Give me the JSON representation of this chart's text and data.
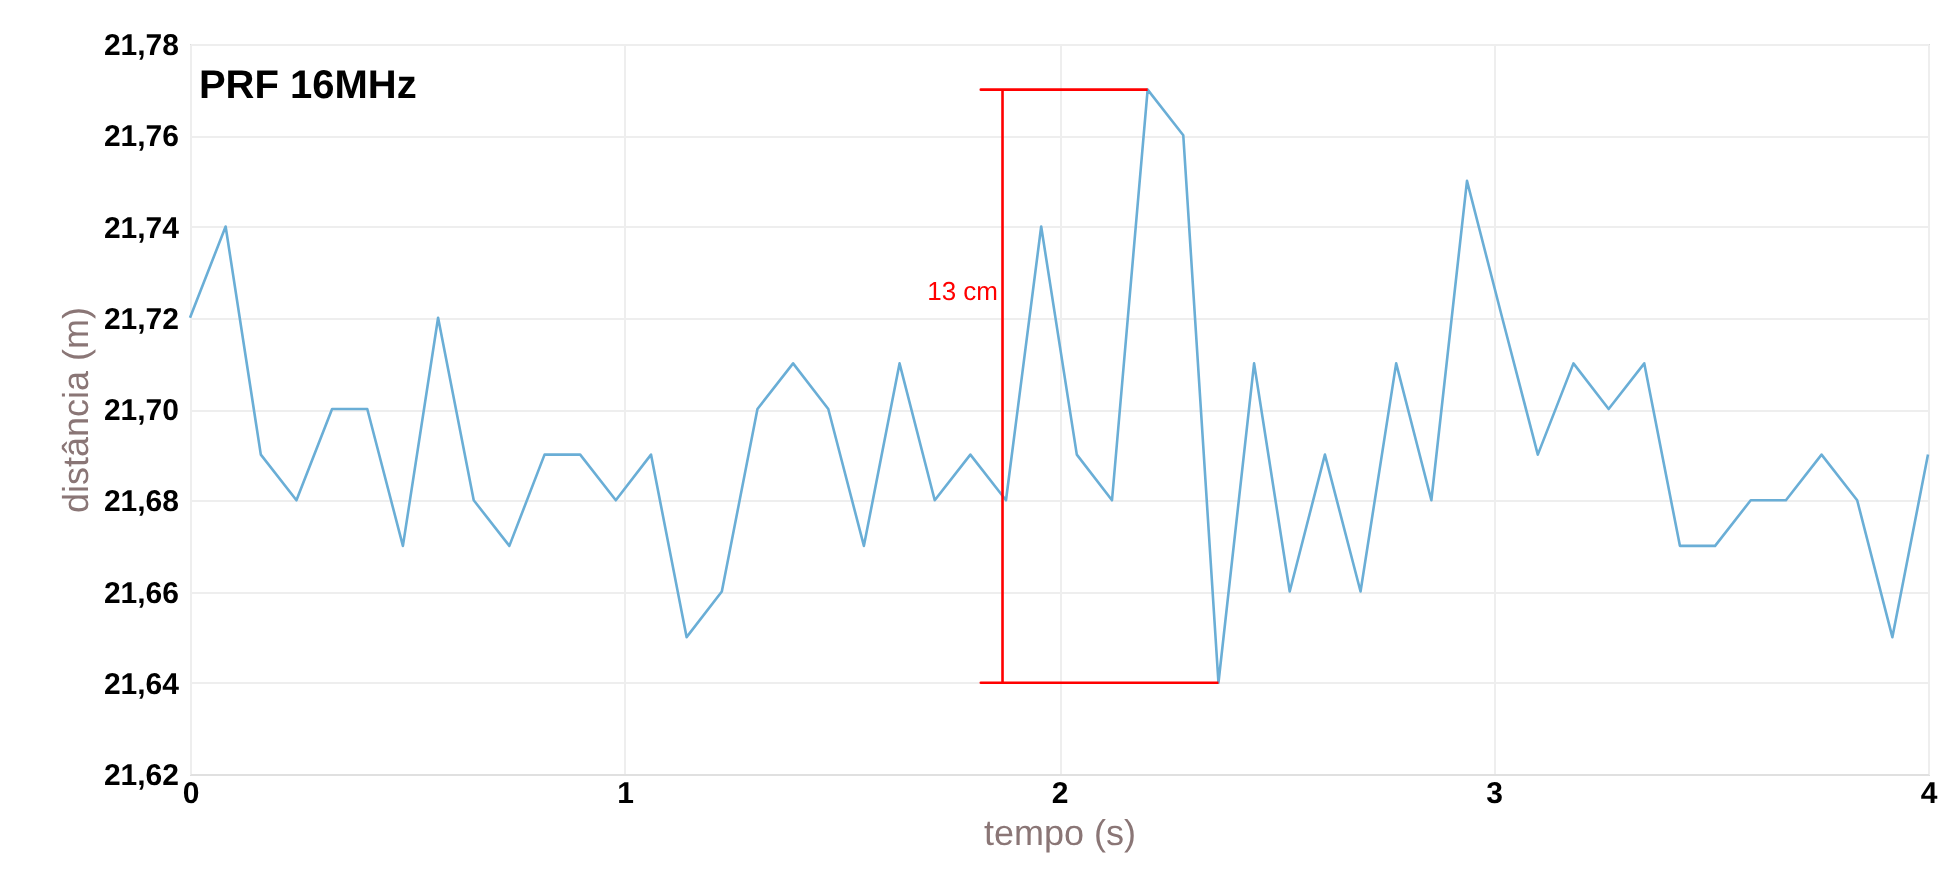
{
  "chart_data": {
    "type": "line",
    "title": "PRF 16MHz",
    "xlabel": "tempo (s)",
    "ylabel": "distância (m)",
    "x": [
      0,
      0.082,
      0.163,
      0.245,
      0.327,
      0.408,
      0.49,
      0.571,
      0.653,
      0.735,
      0.816,
      0.898,
      0.98,
      1.061,
      1.143,
      1.224,
      1.306,
      1.388,
      1.469,
      1.551,
      1.633,
      1.714,
      1.796,
      1.878,
      1.959,
      2.041,
      2.122,
      2.204,
      2.286,
      2.367,
      2.449,
      2.531,
      2.612,
      2.694,
      2.776,
      2.857,
      2.939,
      3.02,
      3.102,
      3.184,
      3.265,
      3.347,
      3.429,
      3.51,
      3.592,
      3.673,
      3.755,
      3.837,
      3.918,
      4.0
    ],
    "series": [
      {
        "color": "#6aaed6",
        "values": [
          21.72,
          21.74,
          21.69,
          21.68,
          21.7,
          21.7,
          21.67,
          21.72,
          21.68,
          21.67,
          21.69,
          21.69,
          21.68,
          21.69,
          21.65,
          21.66,
          21.7,
          21.71,
          21.7,
          21.67,
          21.71,
          21.68,
          21.69,
          21.68,
          21.74,
          21.69,
          21.68,
          21.77,
          21.76,
          21.64,
          21.71,
          21.66,
          21.69,
          21.66,
          21.71,
          21.68,
          21.75,
          21.72,
          21.69,
          21.71,
          21.7,
          21.71,
          21.67,
          21.67,
          21.68,
          21.68,
          21.69,
          21.68,
          21.65,
          21.69
        ]
      },
      {
        "type": "line",
        "color": "#ff0000",
        "x": [
          2.204,
          1.82,
          1.87,
          1.87,
          1.82,
          2.367
        ],
        "values": [
          21.77,
          21.77,
          21.77,
          21.64,
          21.64,
          21.64
        ]
      }
    ],
    "xlim": [
      0,
      4
    ],
    "xticks": [
      {
        "value": 0,
        "label": "0"
      },
      {
        "value": 1,
        "label": "1"
      },
      {
        "value": 2,
        "label": "2"
      },
      {
        "value": 3,
        "label": "3"
      },
      {
        "value": 4,
        "label": "4"
      }
    ],
    "ylim": [
      21.62,
      21.78
    ],
    "yticks": [
      {
        "value": 21.62,
        "label": "21,62"
      },
      {
        "value": 21.64,
        "label": "21,64"
      },
      {
        "value": 21.66,
        "label": "21,66"
      },
      {
        "value": 21.68,
        "label": "21,68"
      },
      {
        "value": 21.7,
        "label": "21,70"
      },
      {
        "value": 21.72,
        "label": "21,72"
      },
      {
        "value": 21.74,
        "label": "21,74"
      },
      {
        "value": 21.76,
        "label": "21,76"
      },
      {
        "value": 21.78,
        "label": "21,78"
      }
    ],
    "annotations": [
      "13 cm"
    ],
    "grid": true,
    "marker": "none",
    "line_style": "solid"
  }
}
